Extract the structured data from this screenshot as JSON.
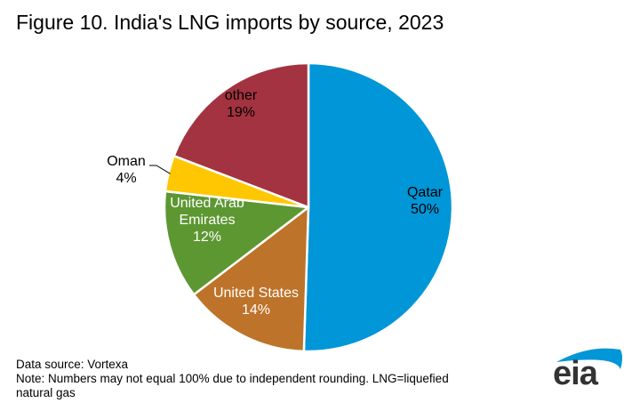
{
  "title": "Figure 10. India's LNG imports by source, 2023",
  "chart_data": {
    "type": "pie",
    "title": "Figure 10. India's LNG imports by source, 2023",
    "start_angle_deg": 0,
    "direction": "clockwise",
    "slices": [
      {
        "label": "Qatar",
        "label_lines": [
          "Qatar"
        ],
        "value": 50,
        "value_label": "50%",
        "color": "#0096D7",
        "text_color": "#000000"
      },
      {
        "label": "United States",
        "label_lines": [
          "United States"
        ],
        "value": 14,
        "value_label": "14%",
        "color": "#BD732A",
        "text_color": "#FFFFFF"
      },
      {
        "label": "United Arab Emirates",
        "label_lines": [
          "United Arab",
          "Emirates"
        ],
        "value": 12,
        "value_label": "12%",
        "color": "#5D9732",
        "text_color": "#FFFFFF"
      },
      {
        "label": "Oman",
        "label_lines": [
          "Oman"
        ],
        "value": 4,
        "value_label": "4%",
        "color": "#FFC702",
        "text_color": "#000000",
        "outside_label": true
      },
      {
        "label": "other",
        "label_lines": [
          "other"
        ],
        "value": 19,
        "value_label": "19%",
        "color": "#A33340",
        "text_color": "#000000"
      }
    ]
  },
  "footer": {
    "source": "Data source: Vortexa",
    "note_line1": "Note: Numbers may not equal 100% due to independent rounding. LNG=liquefied",
    "note_line2": "natural gas"
  },
  "logo": {
    "text": "eia",
    "arc_color": "#0096D7"
  }
}
